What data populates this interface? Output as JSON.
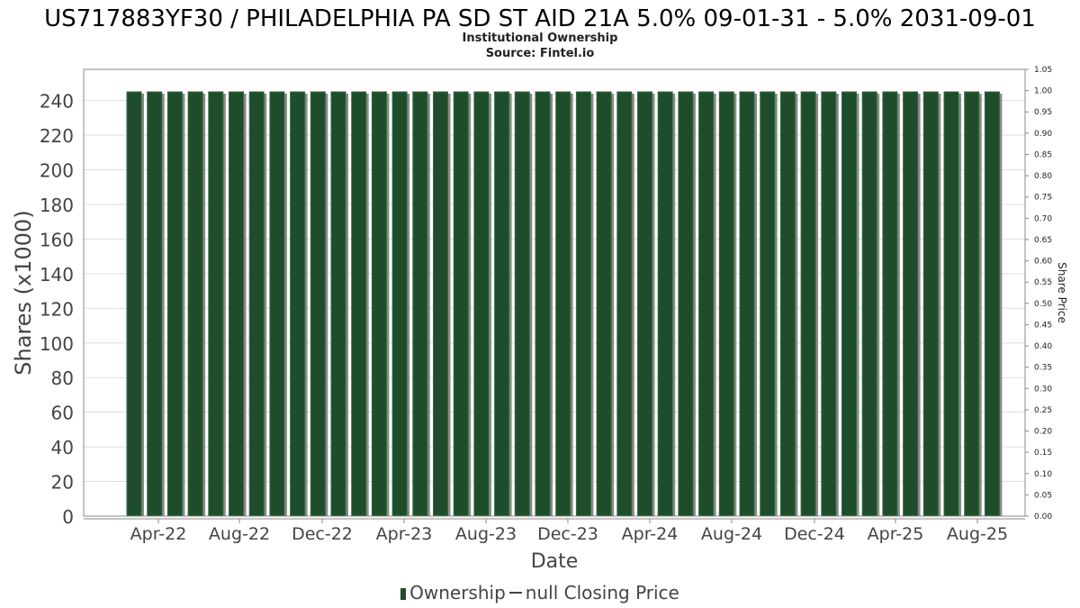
{
  "colors": {
    "bar": "#1f4d2b",
    "bar_shadow": "#8a8a8a",
    "grid": "#dddddd",
    "axis": "#888888"
  },
  "chart_data": {
    "type": "bar",
    "title": "US717883YF30 / PHILADELPHIA PA SD ST AID 21A 5.0% 09-01-31 - 5.0% 2031-09-01",
    "subtitle": "Institutional Ownership",
    "source": "Source: Fintel.io",
    "xlabel": "Date",
    "ylabel": "Shares (x1000)",
    "y2label": "Share Price",
    "ylim": [
      0,
      258
    ],
    "y_ticks": [
      0,
      20,
      40,
      60,
      80,
      100,
      120,
      140,
      160,
      180,
      200,
      220,
      240
    ],
    "y2lim": [
      0,
      1.05
    ],
    "y2_ticks": [
      "0.00",
      "0.05",
      "0.10",
      "0.15",
      "0.20",
      "0.25",
      "0.30",
      "0.35",
      "0.40",
      "0.45",
      "0.50",
      "0.55",
      "0.60",
      "0.65",
      "0.70",
      "0.75",
      "0.80",
      "0.85",
      "0.90",
      "0.95",
      "1.00",
      "1.05"
    ],
    "x_ticks": [
      "Apr-22",
      "Aug-22",
      "Dec-22",
      "Apr-23",
      "Aug-23",
      "Dec-23",
      "Apr-24",
      "Aug-24",
      "Dec-24",
      "Apr-25",
      "Aug-25"
    ],
    "grid": true,
    "legend_position": "bottom",
    "series": [
      {
        "name": "Ownership",
        "type": "bar",
        "values": [
          245,
          245,
          245,
          245,
          245,
          245,
          245,
          245,
          245,
          245,
          245,
          245,
          245,
          245,
          245,
          245,
          245,
          245,
          245,
          245,
          245,
          245,
          245,
          245,
          245,
          245,
          245,
          245,
          245,
          245,
          245,
          245,
          245,
          245,
          245,
          245,
          245,
          245,
          245,
          245,
          245,
          245,
          245
        ]
      },
      {
        "name": "null Closing Price",
        "type": "line",
        "values": []
      }
    ]
  }
}
